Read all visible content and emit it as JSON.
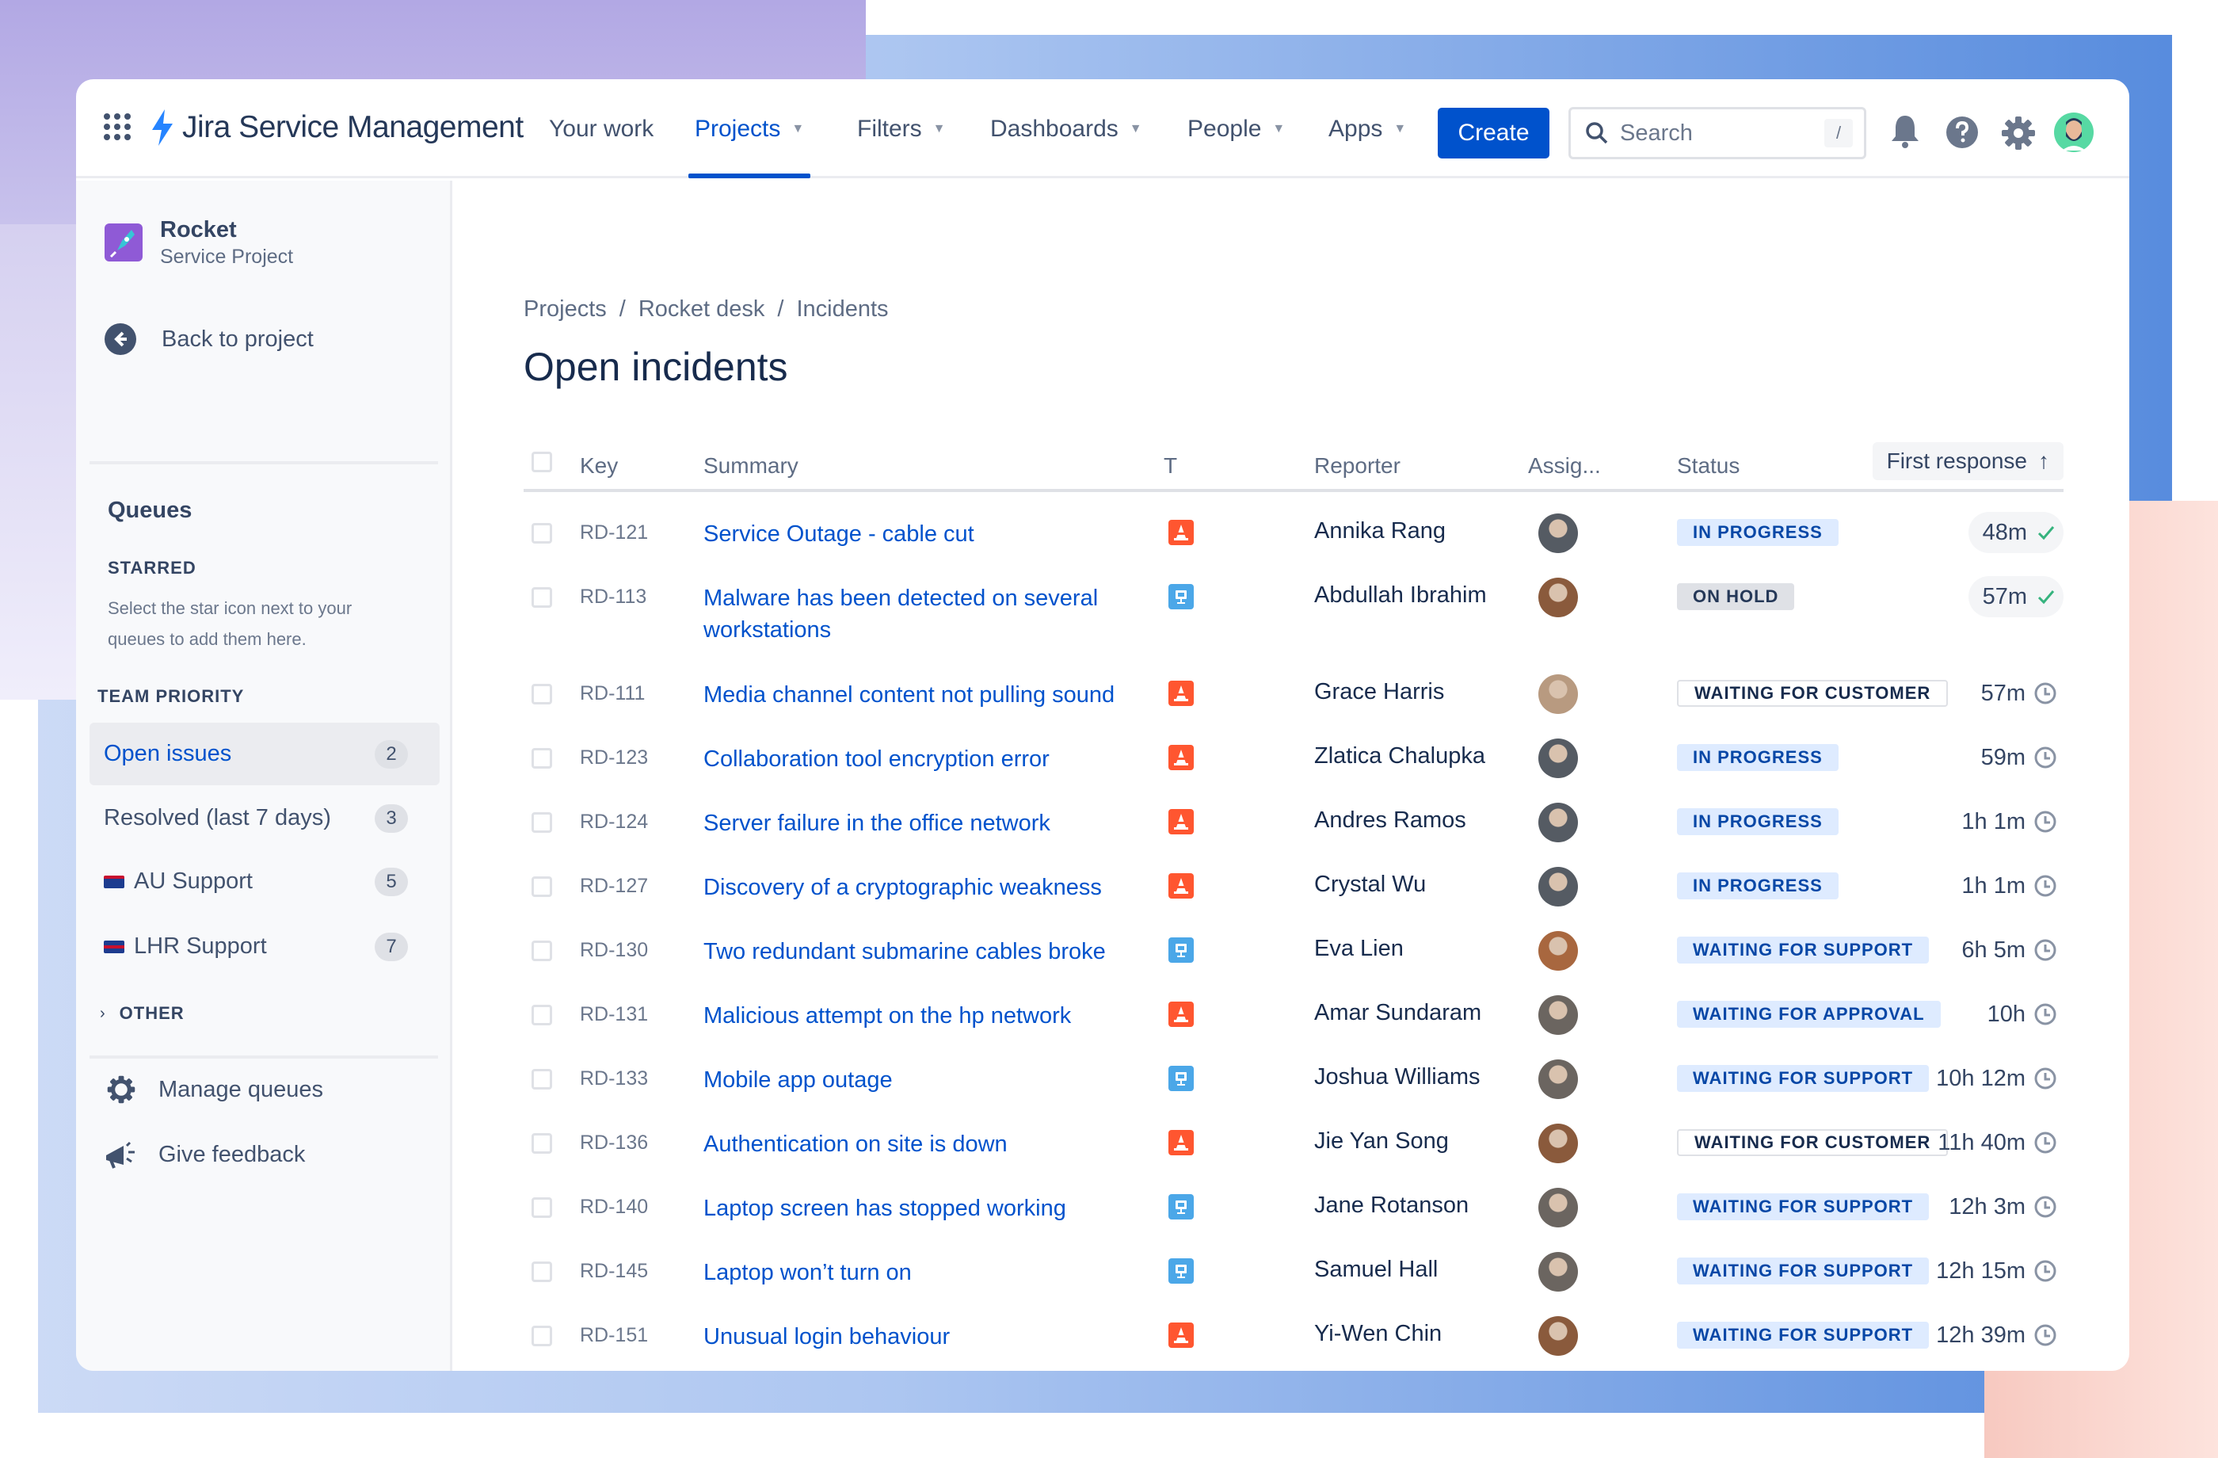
{
  "colors": {
    "brand": "#0052cc",
    "incident": "#ff5630",
    "hardware": "#4ba7e8",
    "met": "#36b37e"
  },
  "header": {
    "product_name": "Jira Service Management",
    "nav": [
      {
        "label": "Your work",
        "dropdown": false
      },
      {
        "label": "Projects",
        "dropdown": true,
        "active": true
      },
      {
        "label": "Filters",
        "dropdown": true
      },
      {
        "label": "Dashboards",
        "dropdown": true
      },
      {
        "label": "People",
        "dropdown": true
      },
      {
        "label": "Apps",
        "dropdown": true
      }
    ],
    "create_label": "Create",
    "search_placeholder": "Search",
    "search_shortcut": "/"
  },
  "sidebar": {
    "project_name": "Rocket",
    "project_type": "Service Project",
    "back_label": "Back to project",
    "queues_heading": "Queues",
    "starred_heading": "STARRED",
    "starred_help": "Select the star icon next to your queues to add them here.",
    "team_priority_heading": "TEAM PRIORITY",
    "queues": [
      {
        "label": "Open issues",
        "count": "2",
        "active": true
      },
      {
        "label": "Resolved (last 7 days)",
        "count": "3"
      },
      {
        "label": "AU Support",
        "count": "5",
        "flag": "au"
      },
      {
        "label": "LHR Support",
        "count": "7",
        "flag": "uk"
      }
    ],
    "other_heading": "OTHER",
    "manage_label": "Manage queues",
    "feedback_label": "Give feedback"
  },
  "main": {
    "breadcrumbs": [
      "Projects",
      "Rocket desk",
      "Incidents"
    ],
    "title": "Open incidents",
    "columns": {
      "key": "Key",
      "summary": "Summary",
      "type": "T",
      "reporter": "Reporter",
      "assignee": "Assig...",
      "status": "Status",
      "first_response": "First response"
    },
    "rows": [
      {
        "key": "RD-121",
        "summary": "Service Outage - cable cut",
        "type": "incident",
        "reporter": "Annika Rang",
        "avatar": "#555b63",
        "status": "IN PROGRESS",
        "status_style": "blue",
        "response": "48m",
        "met": true
      },
      {
        "key": "RD-113",
        "summary": "Malware has been detected on several workstations",
        "type": "hardware",
        "reporter": "Abdullah Ibrahim",
        "avatar": "#8a5a3c",
        "status": "ON HOLD",
        "status_style": "grey",
        "response": "57m",
        "met": true
      },
      {
        "key": "RD-111",
        "summary": "Media channel content not pulling sound",
        "type": "incident",
        "reporter": "Grace Harris",
        "avatar": "#b89a80",
        "status": "WAITING FOR CUSTOMER",
        "status_style": "outline",
        "response": "57m",
        "met": false
      },
      {
        "key": "RD-123",
        "summary": "Collaboration tool encryption error",
        "type": "incident",
        "reporter": "Zlatica Chalupka",
        "avatar": "#555b63",
        "status": "IN PROGRESS",
        "status_style": "blue",
        "response": "59m",
        "met": false
      },
      {
        "key": "RD-124",
        "summary": "Server failure in the office network",
        "type": "incident",
        "reporter": "Andres Ramos",
        "avatar": "#555b63",
        "status": "IN PROGRESS",
        "status_style": "blue",
        "response": "1h 1m",
        "met": false
      },
      {
        "key": "RD-127",
        "summary": "Discovery of a cryptographic weakness",
        "type": "incident",
        "reporter": "Crystal Wu",
        "avatar": "#555b63",
        "status": "IN PROGRESS",
        "status_style": "blue",
        "response": "1h 1m",
        "met": false
      },
      {
        "key": "RD-130",
        "summary": "Two redundant submarine cables broke",
        "type": "hardware",
        "reporter": "Eva Lien",
        "avatar": "#a8673f",
        "status": "WAITING FOR SUPPORT",
        "status_style": "blue",
        "response": "6h 5m",
        "met": false
      },
      {
        "key": "RD-131",
        "summary": "Malicious attempt on the hp network",
        "type": "incident",
        "reporter": "Amar Sundaram",
        "avatar": "#6b6560",
        "status": "WAITING FOR APPROVAL",
        "status_style": "blue",
        "response": "10h",
        "met": false
      },
      {
        "key": "RD-133",
        "summary": "Mobile app outage",
        "type": "hardware",
        "reporter": "Joshua Williams",
        "avatar": "#6b6560",
        "status": "WAITING FOR SUPPORT",
        "status_style": "blue",
        "response": "10h 12m",
        "met": false
      },
      {
        "key": "RD-136",
        "summary": "Authentication on site is down",
        "type": "incident",
        "reporter": "Jie Yan Song",
        "avatar": "#8a5a3c",
        "status": "WAITING FOR CUSTOMER",
        "status_style": "outline",
        "response": "11h 40m",
        "met": false
      },
      {
        "key": "RD-140",
        "summary": "Laptop screen has stopped working",
        "type": "hardware",
        "reporter": "Jane Rotanson",
        "avatar": "#6b6560",
        "status": "WAITING FOR SUPPORT",
        "status_style": "blue",
        "response": "12h 3m",
        "met": false
      },
      {
        "key": "RD-145",
        "summary": "Laptop won’t turn on",
        "type": "hardware",
        "reporter": "Samuel Hall",
        "avatar": "#6b6560",
        "status": "WAITING FOR SUPPORT",
        "status_style": "blue",
        "response": "12h 15m",
        "met": false
      },
      {
        "key": "RD-151",
        "summary": "Unusual login behaviour",
        "type": "incident",
        "reporter": "Yi-Wen Chin",
        "avatar": "#8a5a3c",
        "status": "WAITING FOR SUPPORT",
        "status_style": "blue",
        "response": "12h 39m",
        "met": false
      }
    ]
  }
}
